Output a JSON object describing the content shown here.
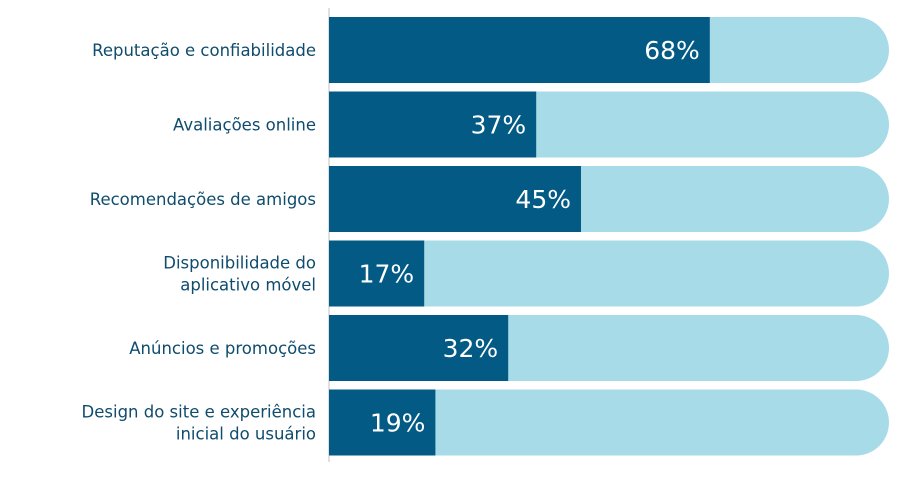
{
  "chart_data": {
    "type": "bar",
    "orientation": "horizontal",
    "stacked_track": true,
    "categories": [
      [
        "Reputação e confiabilidade"
      ],
      [
        "Avaliações online"
      ],
      [
        "Recomendações de amigos"
      ],
      [
        "Disponibilidade do",
        "aplicativo móvel"
      ],
      [
        "Anúncios e promoções"
      ],
      [
        "Design do site e experiência",
        "inicial do usuário"
      ]
    ],
    "values": [
      68,
      37,
      45,
      17,
      32,
      19
    ],
    "value_labels": [
      "68%",
      "37%",
      "45%",
      "17%",
      "32%",
      "19%"
    ],
    "xlim": [
      0,
      100
    ],
    "grid": false,
    "legend": "none",
    "colors": {
      "bar": "#035a85",
      "track": "#a7dbe8",
      "label_text": "#0f4c6e",
      "value_text": "#ffffff",
      "axis_line": "#d6d6d6"
    }
  }
}
